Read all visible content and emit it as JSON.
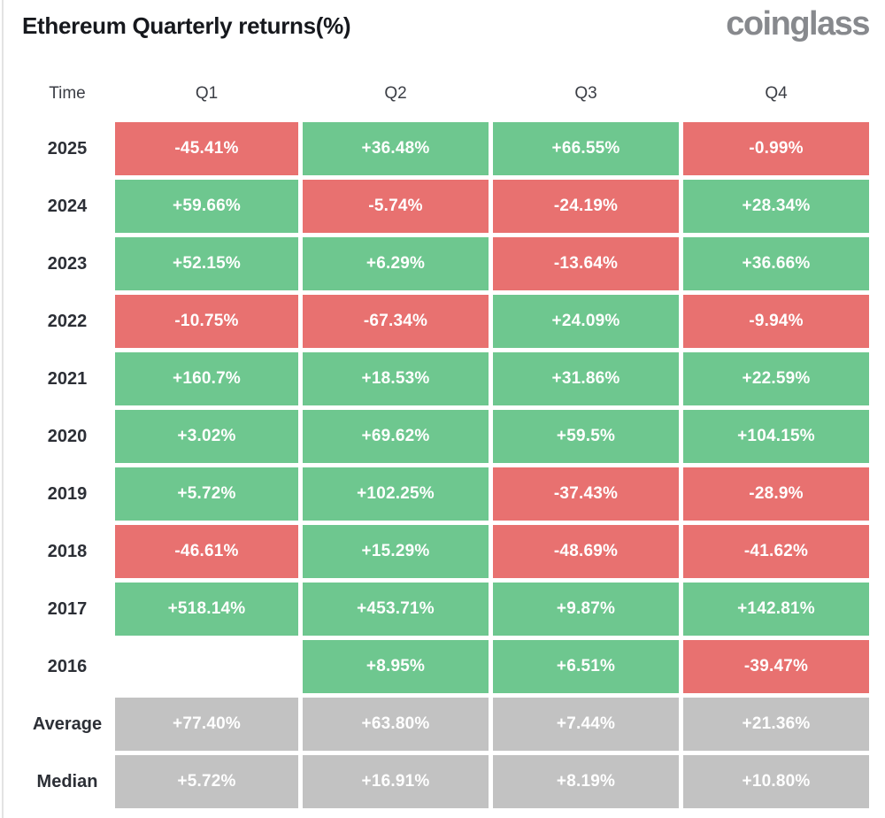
{
  "header": {
    "title": "Ethereum Quarterly returns(%)",
    "logo": "coinglass"
  },
  "colors": {
    "pos": "#6ec78f",
    "neg": "#e87170",
    "neutral": "#c2c2c2"
  },
  "table": {
    "columns": [
      "Time",
      "Q1",
      "Q2",
      "Q3",
      "Q4"
    ],
    "rows": [
      {
        "label": "2025",
        "cells": [
          {
            "text": "-45.41%",
            "tone": "neg"
          },
          {
            "text": "+36.48%",
            "tone": "pos"
          },
          {
            "text": "+66.55%",
            "tone": "pos"
          },
          {
            "text": "-0.99%",
            "tone": "neg"
          }
        ]
      },
      {
        "label": "2024",
        "cells": [
          {
            "text": "+59.66%",
            "tone": "pos"
          },
          {
            "text": "-5.74%",
            "tone": "neg"
          },
          {
            "text": "-24.19%",
            "tone": "neg"
          },
          {
            "text": "+28.34%",
            "tone": "pos"
          }
        ]
      },
      {
        "label": "2023",
        "cells": [
          {
            "text": "+52.15%",
            "tone": "pos"
          },
          {
            "text": "+6.29%",
            "tone": "pos"
          },
          {
            "text": "-13.64%",
            "tone": "neg"
          },
          {
            "text": "+36.66%",
            "tone": "pos"
          }
        ]
      },
      {
        "label": "2022",
        "cells": [
          {
            "text": "-10.75%",
            "tone": "neg"
          },
          {
            "text": "-67.34%",
            "tone": "neg"
          },
          {
            "text": "+24.09%",
            "tone": "pos"
          },
          {
            "text": "-9.94%",
            "tone": "neg"
          }
        ]
      },
      {
        "label": "2021",
        "cells": [
          {
            "text": "+160.7%",
            "tone": "pos"
          },
          {
            "text": "+18.53%",
            "tone": "pos"
          },
          {
            "text": "+31.86%",
            "tone": "pos"
          },
          {
            "text": "+22.59%",
            "tone": "pos"
          }
        ]
      },
      {
        "label": "2020",
        "cells": [
          {
            "text": "+3.02%",
            "tone": "pos"
          },
          {
            "text": "+69.62%",
            "tone": "pos"
          },
          {
            "text": "+59.5%",
            "tone": "pos"
          },
          {
            "text": "+104.15%",
            "tone": "pos"
          }
        ]
      },
      {
        "label": "2019",
        "cells": [
          {
            "text": "+5.72%",
            "tone": "pos"
          },
          {
            "text": "+102.25%",
            "tone": "pos"
          },
          {
            "text": "-37.43%",
            "tone": "neg"
          },
          {
            "text": "-28.9%",
            "tone": "neg"
          }
        ]
      },
      {
        "label": "2018",
        "cells": [
          {
            "text": "-46.61%",
            "tone": "neg"
          },
          {
            "text": "+15.29%",
            "tone": "pos"
          },
          {
            "text": "-48.69%",
            "tone": "neg"
          },
          {
            "text": "-41.62%",
            "tone": "neg"
          }
        ]
      },
      {
        "label": "2017",
        "cells": [
          {
            "text": "+518.14%",
            "tone": "pos"
          },
          {
            "text": "+453.71%",
            "tone": "pos"
          },
          {
            "text": "+9.87%",
            "tone": "pos"
          },
          {
            "text": "+142.81%",
            "tone": "pos"
          }
        ]
      },
      {
        "label": "2016",
        "cells": [
          {
            "text": "",
            "tone": "empty"
          },
          {
            "text": "+8.95%",
            "tone": "pos"
          },
          {
            "text": "+6.51%",
            "tone": "pos"
          },
          {
            "text": "-39.47%",
            "tone": "neg"
          }
        ]
      },
      {
        "label": "Average",
        "cells": [
          {
            "text": "+77.40%",
            "tone": "neutral"
          },
          {
            "text": "+63.80%",
            "tone": "neutral"
          },
          {
            "text": "+7.44%",
            "tone": "neutral"
          },
          {
            "text": "+21.36%",
            "tone": "neutral"
          }
        ]
      },
      {
        "label": "Median",
        "cells": [
          {
            "text": "+5.72%",
            "tone": "neutral"
          },
          {
            "text": "+16.91%",
            "tone": "neutral"
          },
          {
            "text": "+8.19%",
            "tone": "neutral"
          },
          {
            "text": "+10.80%",
            "tone": "neutral"
          }
        ]
      }
    ]
  },
  "chart_data": {
    "type": "heatmap",
    "title": "Ethereum Quarterly returns(%)",
    "columns": [
      "Q1",
      "Q2",
      "Q3",
      "Q4"
    ],
    "rows": [
      "2025",
      "2024",
      "2023",
      "2022",
      "2021",
      "2020",
      "2019",
      "2018",
      "2017",
      "2016",
      "Average",
      "Median"
    ],
    "values": [
      [
        -45.41,
        36.48,
        66.55,
        -0.99
      ],
      [
        59.66,
        -5.74,
        -24.19,
        28.34
      ],
      [
        52.15,
        6.29,
        -13.64,
        36.66
      ],
      [
        -10.75,
        -67.34,
        24.09,
        -9.94
      ],
      [
        160.7,
        18.53,
        31.86,
        22.59
      ],
      [
        3.02,
        69.62,
        59.5,
        104.15
      ],
      [
        5.72,
        102.25,
        -37.43,
        -28.9
      ],
      [
        -46.61,
        15.29,
        -48.69,
        -41.62
      ],
      [
        518.14,
        453.71,
        9.87,
        142.81
      ],
      [
        null,
        8.95,
        6.51,
        -39.47
      ],
      [
        77.4,
        63.8,
        7.44,
        21.36
      ],
      [
        5.72,
        16.91,
        8.19,
        10.8
      ]
    ],
    "legend_position": "none",
    "color_encoding": {
      "positive": "green",
      "negative": "red",
      "summary_rows_gray": [
        "Average",
        "Median"
      ]
    }
  }
}
